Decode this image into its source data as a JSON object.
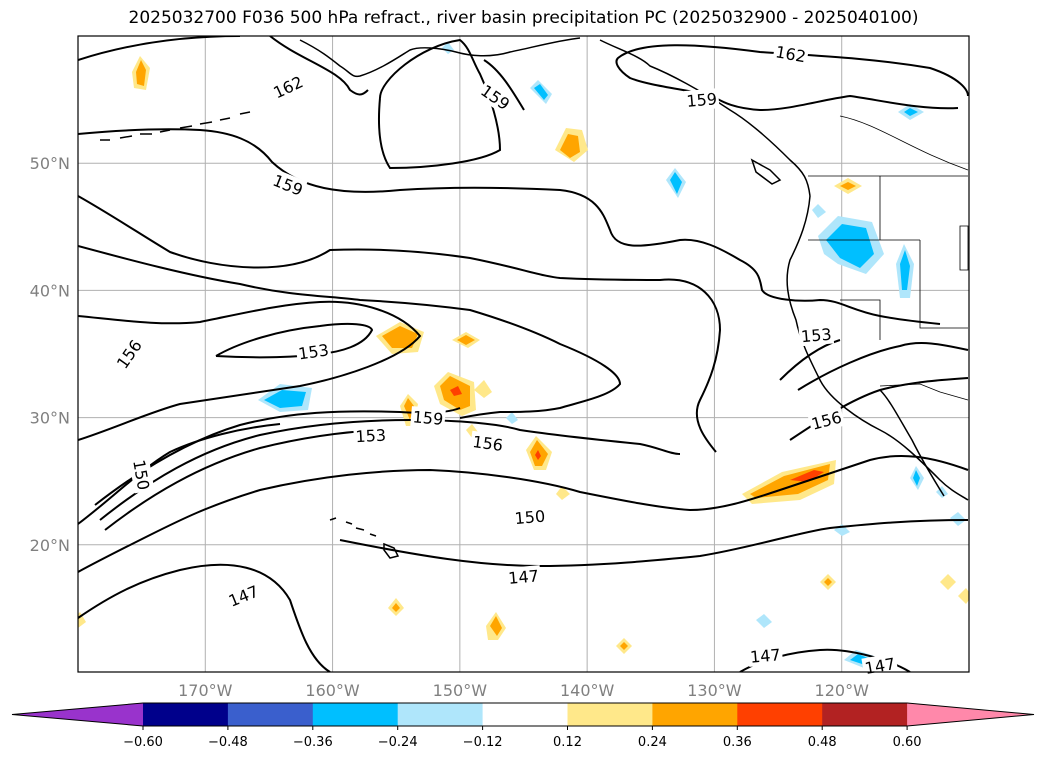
{
  "title": "2025032700 F036 500 hPa refract., river basin precipitation PC (2025032900 - 2025040100)",
  "map": {
    "lon_range": [
      -180,
      -110
    ],
    "lat_range": [
      10,
      60
    ],
    "lat_ticks": [
      {
        "value": 20,
        "label": "20°N"
      },
      {
        "value": 30,
        "label": "30°N"
      },
      {
        "value": 40,
        "label": "40°N"
      },
      {
        "value": 50,
        "label": "50°N"
      }
    ],
    "lon_ticks": [
      {
        "value": -170,
        "label": "170°W"
      },
      {
        "value": -160,
        "label": "160°W"
      },
      {
        "value": -150,
        "label": "150°W"
      },
      {
        "value": -140,
        "label": "140°W"
      },
      {
        "value": -130,
        "label": "130°W"
      },
      {
        "value": -120,
        "label": "120°W"
      }
    ],
    "gridlines": true,
    "contour_labels": [
      {
        "text": "162",
        "lon": -163.5,
        "lat": 56.0,
        "rot": -25
      },
      {
        "text": "159",
        "lon": -147.2,
        "lat": 55.2,
        "rot": 35
      },
      {
        "text": "162",
        "lon": -124.0,
        "lat": 58.6,
        "rot": 10
      },
      {
        "text": "159",
        "lon": -131.0,
        "lat": 55.0,
        "rot": -5
      },
      {
        "text": "159",
        "lon": -163.5,
        "lat": 48.3,
        "rot": 22
      },
      {
        "text": "156",
        "lon": -176.0,
        "lat": 35.0,
        "rot": -55
      },
      {
        "text": "153",
        "lon": -161.5,
        "lat": 35.2,
        "rot": -8
      },
      {
        "text": "153",
        "lon": -122.0,
        "lat": 36.5,
        "rot": -5
      },
      {
        "text": "159",
        "lon": -152.5,
        "lat": 30.0,
        "rot": 5
      },
      {
        "text": "153",
        "lon": -157.0,
        "lat": 28.6,
        "rot": -3
      },
      {
        "text": "156",
        "lon": -147.8,
        "lat": 28.0,
        "rot": 8
      },
      {
        "text": "156",
        "lon": -121.2,
        "lat": 29.8,
        "rot": -15
      },
      {
        "text": "150",
        "lon": -175.0,
        "lat": 25.5,
        "rot": 80
      },
      {
        "text": "150",
        "lon": -144.5,
        "lat": 22.2,
        "rot": -5
      },
      {
        "text": "147",
        "lon": -145.0,
        "lat": 17.5,
        "rot": -5
      },
      {
        "text": "147",
        "lon": -167.0,
        "lat": 16.0,
        "rot": -22
      },
      {
        "text": "147",
        "lon": -126.0,
        "lat": 11.3,
        "rot": -5
      },
      {
        "text": "147",
        "lon": -117.0,
        "lat": 10.5,
        "rot": -10
      }
    ]
  },
  "colorbar": {
    "colors": [
      "#9933cc",
      "#00008b",
      "#3a5fcd",
      "#00bfff",
      "#afe6fb",
      "#ffffff",
      "#ffe88a",
      "#ffa500",
      "#ff4000",
      "#b22222",
      "#ff88aa"
    ],
    "tick_labels": [
      "−0.60",
      "−0.48",
      "−0.36",
      "−0.24",
      "−0.12",
      "0.12",
      "0.24",
      "0.36",
      "0.48",
      "0.60"
    ]
  }
}
